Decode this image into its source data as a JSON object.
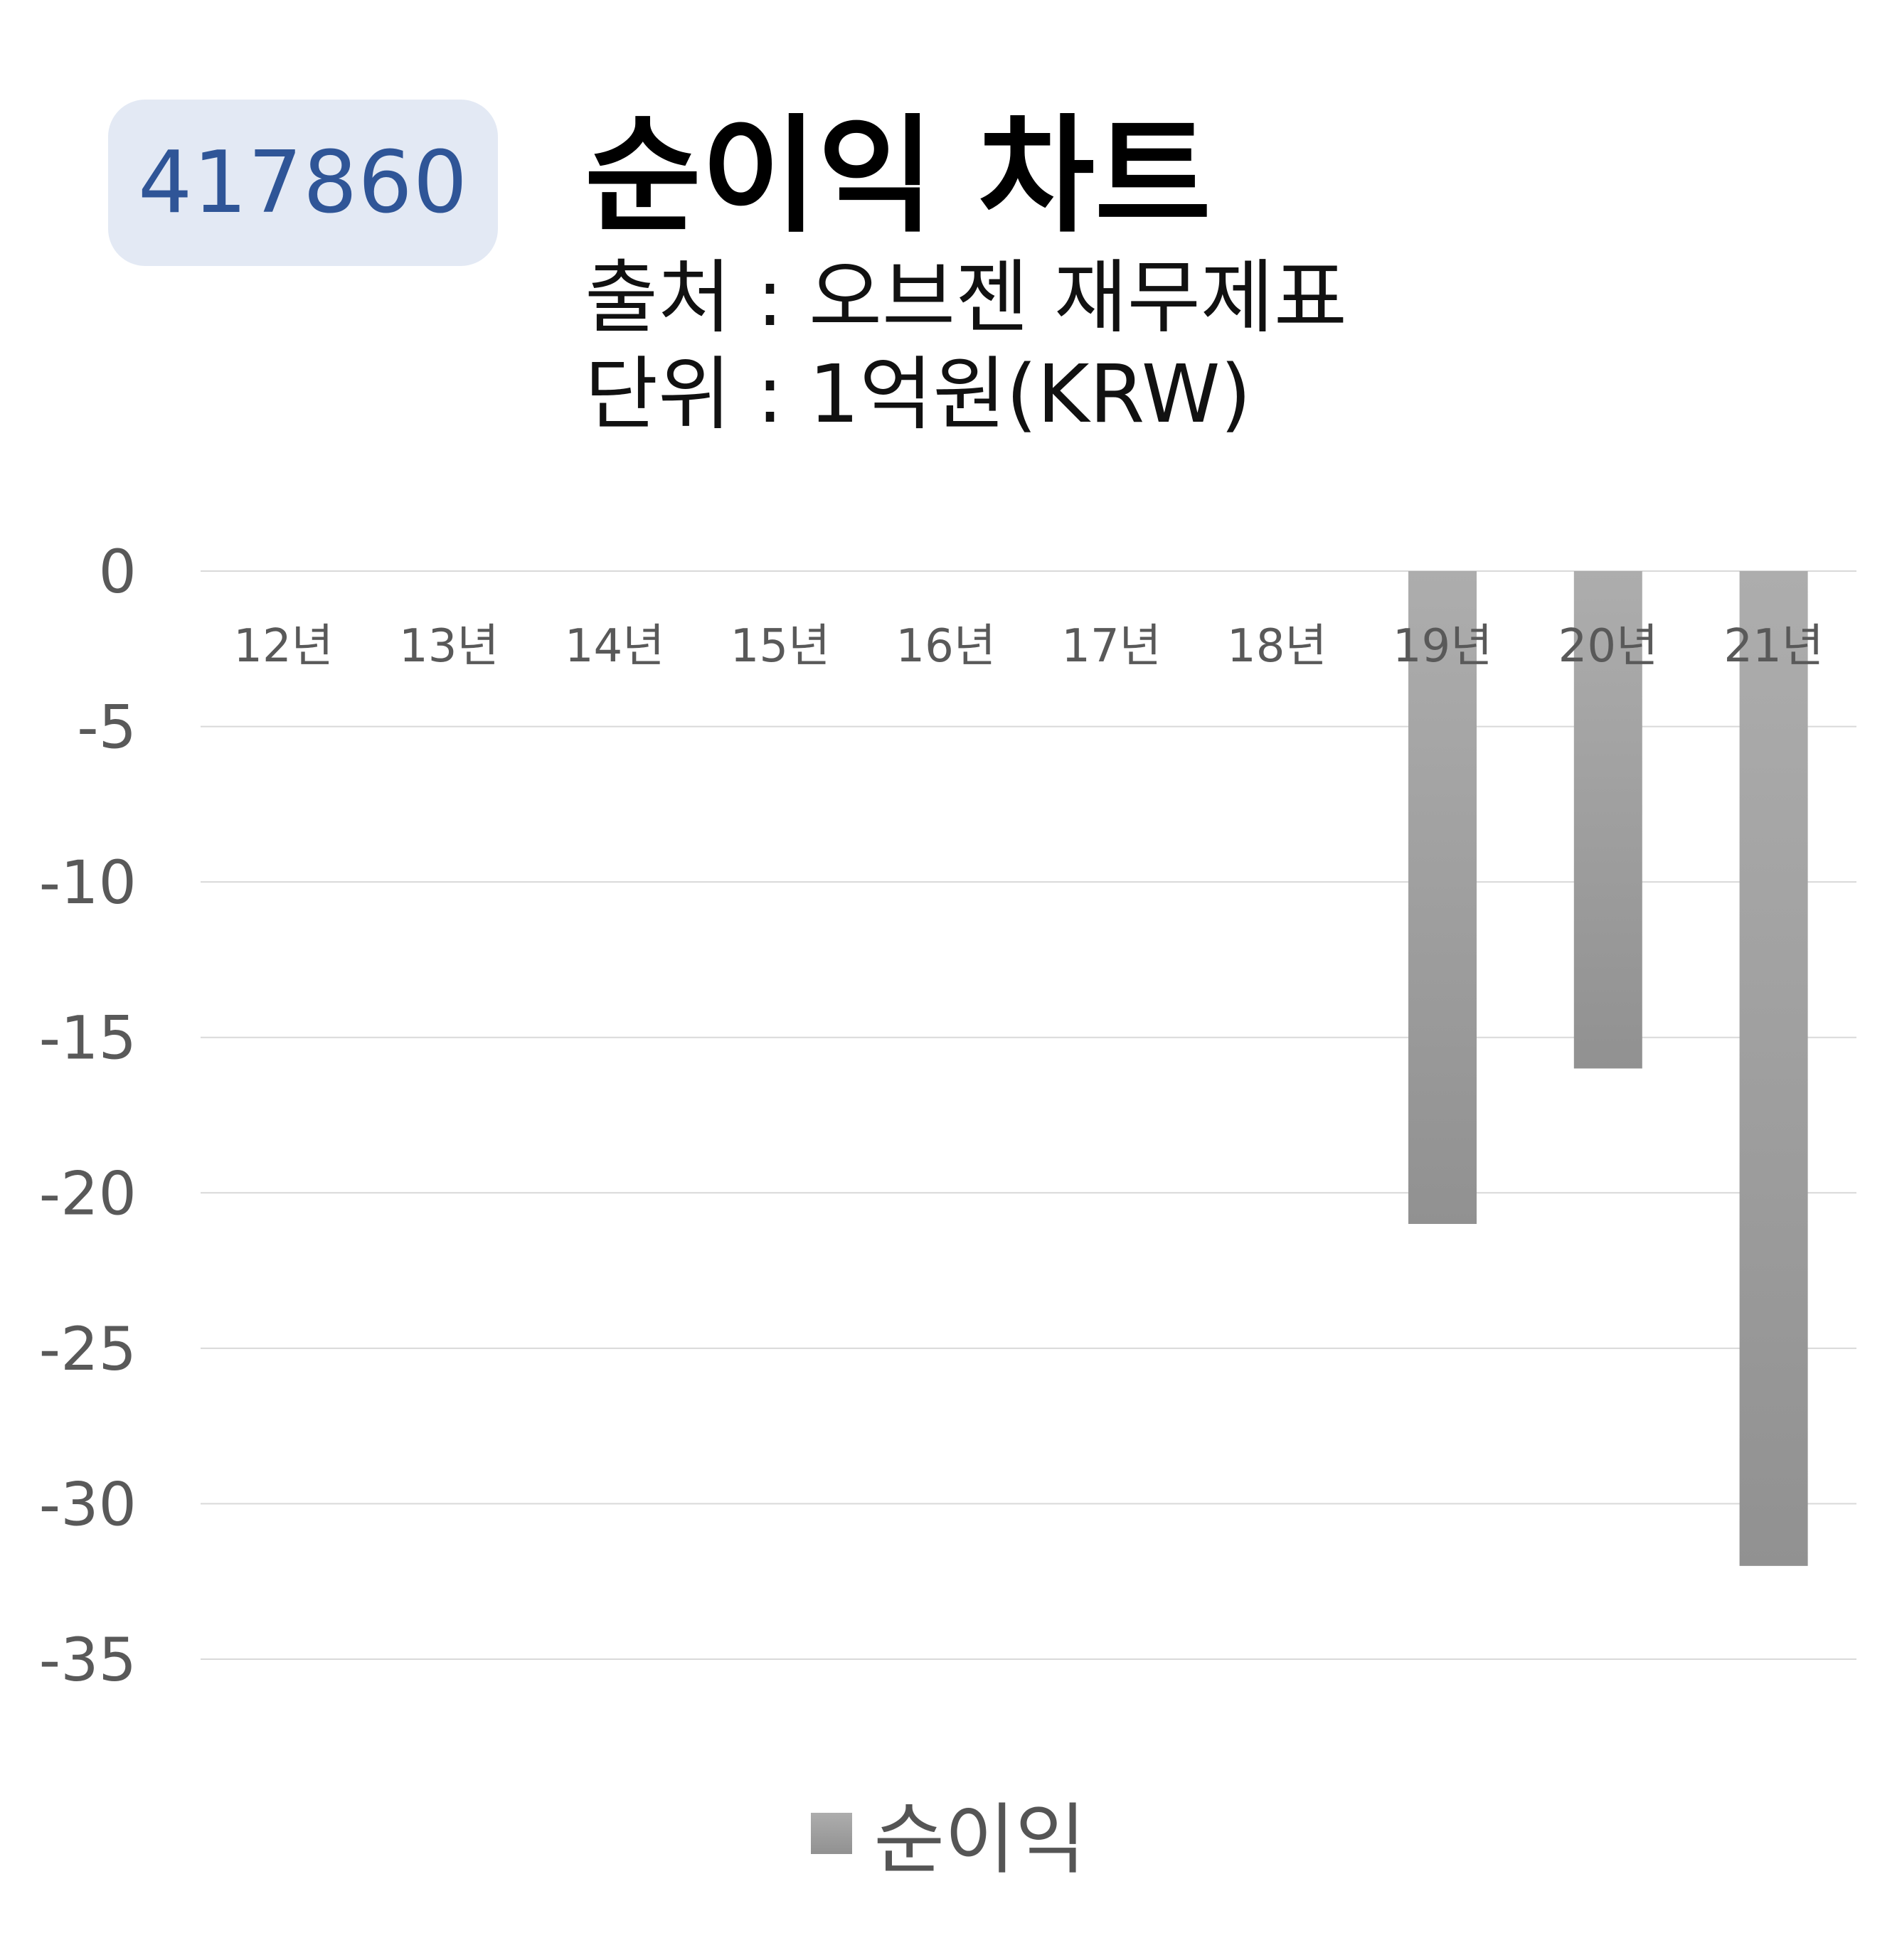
{
  "badge": {
    "code": "417860"
  },
  "header": {
    "title": "순이익 차트",
    "source": "출처 : 오브젠 재무제표",
    "unit": "단위 : 1억원(KRW)"
  },
  "colors": {
    "badge_bg": "#e3e9f4",
    "badge_text": "#2f5597",
    "bar_top": "#adadad",
    "bar_bottom": "#919191",
    "gridline": "#d9d9d9",
    "tick_text": "#595959"
  },
  "chart_data": {
    "type": "bar",
    "categories": [
      "12년",
      "13년",
      "14년",
      "15년",
      "16년",
      "17년",
      "18년",
      "19년",
      "20년",
      "21년"
    ],
    "series": [
      {
        "name": "순이익",
        "values": [
          0,
          0,
          0,
          0,
          0,
          0,
          0,
          -21,
          -16,
          -32
        ]
      }
    ],
    "y_ticks": [
      "0",
      "-5",
      "-10",
      "-15",
      "-20",
      "-25",
      "-30",
      "-35"
    ],
    "ylim": [
      -35,
      0
    ],
    "grid": true,
    "legend": "bottom"
  }
}
